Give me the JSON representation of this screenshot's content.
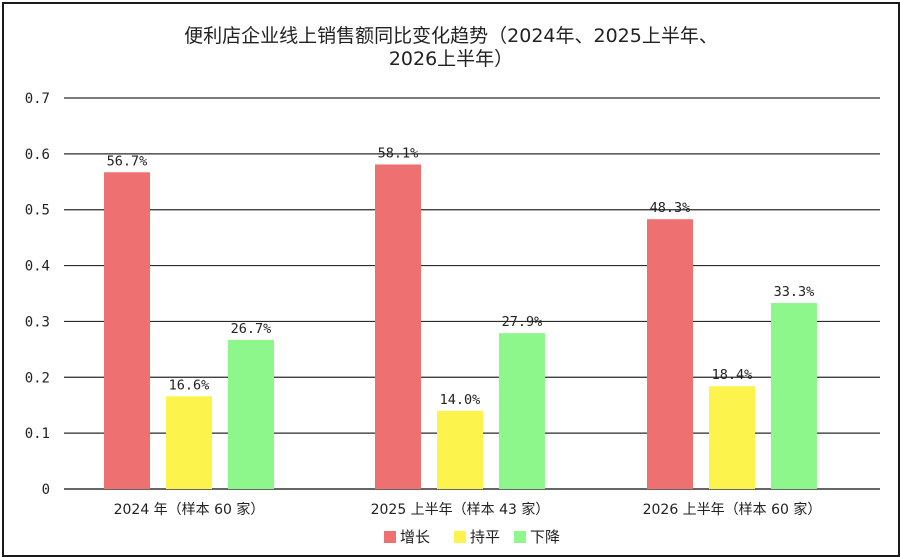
{
  "chart_data": {
    "type": "bar",
    "title_lines": [
      "便利店企业线上销售额同比变化趋势（2024年、2025上半年、",
      "2026上半年）"
    ],
    "categories": [
      "2024 年（样本 60 家）",
      "2025 上半年（样本 43 家）",
      "2026 上半年（样本 60 家）"
    ],
    "series": [
      {
        "name": "增长",
        "color": "#ee7070",
        "values": [
          0.567,
          0.581,
          0.483
        ],
        "labels": [
          "56.7%",
          "58.1%",
          "48.3%"
        ]
      },
      {
        "name": "持平",
        "color": "#fcf44c",
        "values": [
          0.166,
          0.14,
          0.184
        ],
        "labels": [
          "16.6%",
          "14.0%",
          "18.4%"
        ]
      },
      {
        "name": "下降",
        "color": "#8ef78c",
        "values": [
          0.267,
          0.279,
          0.333
        ],
        "labels": [
          "26.7%",
          "27.9%",
          "33.3%"
        ]
      }
    ],
    "y_ticks": [
      "0",
      "0.1",
      "0.2",
      "0.3",
      "0.4",
      "0.5",
      "0.6",
      "0.7"
    ],
    "ylim": [
      0,
      0.7
    ],
    "grid": true,
    "legend_position": "bottom-center"
  }
}
